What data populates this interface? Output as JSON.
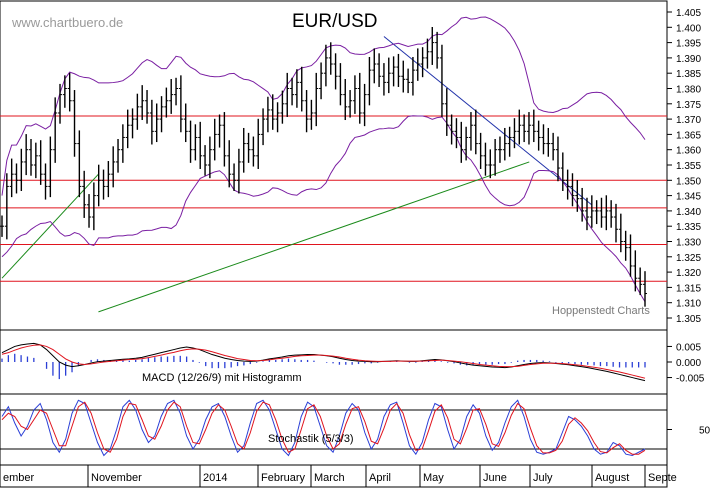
{
  "watermark": "www.chartbuero.de",
  "title": "EUR/USD",
  "credit": "Hoppenstedt Charts",
  "colors": {
    "price": "#000000",
    "bands": "#7a1fa2",
    "levels": "#e0141e",
    "trend_down": "#2233aa",
    "trend_up": "#1a8a1a",
    "macd": "#000000",
    "signal": "#e0141e",
    "histogram": "#2b3fd6",
    "stoch_k": "#2b3fd6",
    "stoch_d": "#e0141e",
    "grid": "#000000"
  },
  "x_axis": {
    "labels": [
      "ember",
      "November",
      "2014",
      "February",
      "March",
      "April",
      "May",
      "June",
      "July",
      "August",
      "Septe"
    ]
  },
  "chart_data": [
    {
      "type": "candlestick",
      "title": "EUR/USD",
      "ylim": [
        1.3,
        1.405
      ],
      "yticks": [
        "1.405",
        "1.400",
        "1.395",
        "1.390",
        "1.385",
        "1.380",
        "1.375",
        "1.370",
        "1.365",
        "1.360",
        "1.355",
        "1.350",
        "1.345",
        "1.340",
        "1.335",
        "1.330",
        "1.325",
        "1.320",
        "1.315",
        "1.310",
        "1.305"
      ],
      "horizontal_levels": [
        1.371,
        1.35,
        1.341,
        1.329,
        1.317
      ],
      "trendlines": [
        {
          "name": "downtrend",
          "from": [
            0.594,
            1.397
          ],
          "to": [
            0.917,
            1.342
          ]
        },
        {
          "name": "uptrend",
          "from": [
            0.15,
            1.307
          ],
          "to": [
            0.82,
            1.356
          ]
        },
        {
          "name": "uptrend-early",
          "from": [
            0.0,
            1.318
          ],
          "to": [
            0.15,
            1.352
          ]
        }
      ],
      "bollinger": true,
      "close": [
        1.335,
        1.348,
        1.352,
        1.35,
        1.356,
        1.36,
        1.355,
        1.358,
        1.352,
        1.348,
        1.36,
        1.372,
        1.378,
        1.38,
        1.376,
        1.362,
        1.348,
        1.342,
        1.338,
        1.345,
        1.35,
        1.348,
        1.352,
        1.356,
        1.36,
        1.364,
        1.368,
        1.37,
        1.374,
        1.376,
        1.372,
        1.366,
        1.37,
        1.374,
        1.376,
        1.378,
        1.38,
        1.37,
        1.366,
        1.36,
        1.364,
        1.358,
        1.355,
        1.36,
        1.365,
        1.368,
        1.358,
        1.352,
        1.35,
        1.356,
        1.362,
        1.36,
        1.358,
        1.365,
        1.37,
        1.373,
        1.37,
        1.372,
        1.375,
        1.38,
        1.378,
        1.382,
        1.376,
        1.37,
        1.372,
        1.38,
        1.385,
        1.39,
        1.388,
        1.384,
        1.378,
        1.374,
        1.376,
        1.38,
        1.372,
        1.378,
        1.386,
        1.388,
        1.384,
        1.382,
        1.385,
        1.387,
        1.384,
        1.383,
        1.382,
        1.386,
        1.388,
        1.39,
        1.392,
        1.395,
        1.39,
        1.375,
        1.368,
        1.366,
        1.364,
        1.36,
        1.364,
        1.368,
        1.362,
        1.358,
        1.355,
        1.355,
        1.36,
        1.36,
        1.362,
        1.364,
        1.366,
        1.368,
        1.366,
        1.368,
        1.366,
        1.364,
        1.362,
        1.362,
        1.36,
        1.354,
        1.35,
        1.348,
        1.345,
        1.344,
        1.34,
        1.338,
        1.34,
        1.34,
        1.338,
        1.34,
        1.338,
        1.334,
        1.33,
        1.328,
        1.322,
        1.318,
        1.316,
        1.313
      ],
      "series": [
        {
          "name": "EUR/USD",
          "values": "close"
        }
      ]
    },
    {
      "type": "line",
      "title": "MACD (12/26/9) mit Histogramm",
      "ylim": [
        -0.009,
        0.009
      ],
      "yticks": [
        "0.005",
        "0.000",
        "-0.005"
      ],
      "series": [
        {
          "name": "MACD",
          "values": [
            0.003,
            0.004,
            0.005,
            0.0055,
            0.0058,
            0.006,
            0.0055,
            0.004,
            0.002,
            0.0,
            -0.001,
            -0.0015,
            -0.0012,
            -0.0008,
            -0.0003,
            0.0001,
            0.0003,
            0.0005,
            0.0007,
            0.0009,
            0.001,
            0.0012,
            0.0015,
            0.002,
            0.0025,
            0.003,
            0.0035,
            0.004,
            0.0045,
            0.0048,
            0.0045,
            0.004,
            0.0032,
            0.0024,
            0.0018,
            0.0012,
            0.0008,
            0.0005,
            0.0003,
            0.0002,
            0.0003,
            0.0006,
            0.001,
            0.0013,
            0.0016,
            0.002,
            0.0022,
            0.0023,
            0.0024,
            0.0024,
            0.0022,
            0.002,
            0.0017,
            0.0012,
            0.0008,
            0.0005,
            0.0003,
            0.0002,
            0.0001,
            0.0001,
            0.0002,
            0.0003,
            0.0004,
            0.0003,
            0.0002,
            0.0002,
            0.0004,
            0.0006,
            0.0008,
            0.0007,
            0.0004,
            0.0001,
            -0.0003,
            -0.0007,
            -0.001,
            -0.0012,
            -0.0014,
            -0.0016,
            -0.0017,
            -0.0018,
            -0.0016,
            -0.0012,
            -0.0008,
            -0.0005,
            -0.0003,
            -0.0002,
            -0.0003,
            -0.0005,
            -0.0007,
            -0.0009,
            -0.0012,
            -0.0015,
            -0.0018,
            -0.0022,
            -0.0026,
            -0.003,
            -0.0035,
            -0.004,
            -0.0045,
            -0.005,
            -0.0055,
            -0.006
          ]
        },
        {
          "name": "Signal",
          "values": [
            0.0025,
            0.003,
            0.0038,
            0.0045,
            0.005,
            0.0054,
            0.0055,
            0.005,
            0.004,
            0.0025,
            0.001,
            0.0,
            -0.0006,
            -0.0008,
            -0.0006,
            -0.0003,
            0.0,
            0.0002,
            0.0004,
            0.0006,
            0.0008,
            0.0009,
            0.0011,
            0.0014,
            0.0018,
            0.0022,
            0.0027,
            0.0031,
            0.0036,
            0.004,
            0.0042,
            0.0041,
            0.0038,
            0.0033,
            0.0027,
            0.0021,
            0.0016,
            0.0011,
            0.0008,
            0.0005,
            0.0004,
            0.0005,
            0.0007,
            0.001,
            0.0012,
            0.0015,
            0.0018,
            0.002,
            0.0021,
            0.0022,
            0.0022,
            0.0021,
            0.0019,
            0.0016,
            0.0012,
            0.0009,
            0.0006,
            0.0004,
            0.0003,
            0.0002,
            0.0002,
            0.0002,
            0.0003,
            0.0003,
            0.0003,
            0.0003,
            0.0003,
            0.0004,
            0.0005,
            0.0006,
            0.0005,
            0.0003,
            0.0001,
            -0.0002,
            -0.0005,
            -0.0008,
            -0.001,
            -0.0012,
            -0.0014,
            -0.0015,
            -0.0015,
            -0.0014,
            -0.0011,
            -0.0008,
            -0.0006,
            -0.0004,
            -0.0004,
            -0.0004,
            -0.0005,
            -0.0007,
            -0.0009,
            -0.0011,
            -0.0014,
            -0.0017,
            -0.002,
            -0.0024,
            -0.0028,
            -0.0032,
            -0.0037,
            -0.0042,
            -0.0047,
            -0.0052
          ]
        }
      ]
    },
    {
      "type": "line",
      "title": "Stochastik (5/3/3)",
      "ylim": [
        0,
        100
      ],
      "yticks": [
        "50"
      ],
      "horizontal_levels": [
        80,
        20
      ],
      "series": [
        {
          "name": "%K",
          "values": [
            70,
            85,
            60,
            40,
            55,
            80,
            90,
            65,
            30,
            15,
            35,
            75,
            95,
            90,
            60,
            30,
            10,
            20,
            50,
            85,
            95,
            80,
            50,
            30,
            40,
            70,
            90,
            95,
            75,
            40,
            20,
            35,
            65,
            85,
            90,
            70,
            40,
            15,
            25,
            60,
            90,
            95,
            80,
            50,
            20,
            10,
            30,
            70,
            92,
            85,
            55,
            25,
            15,
            40,
            75,
            90,
            80,
            45,
            20,
            35,
            70,
            88,
            92,
            60,
            25,
            12,
            30,
            65,
            90,
            85,
            50,
            20,
            35,
            70,
            88,
            75,
            40,
            18,
            30,
            60,
            85,
            95,
            70,
            35,
            15,
            12,
            15,
            20,
            45,
            70,
            65,
            55,
            40,
            20,
            12,
            15,
            30,
            25,
            12,
            10,
            15,
            20
          ]
        },
        {
          "name": "%D",
          "values": [
            65,
            75,
            70,
            55,
            50,
            65,
            80,
            75,
            50,
            25,
            25,
            55,
            85,
            92,
            75,
            45,
            20,
            15,
            35,
            70,
            90,
            88,
            65,
            40,
            35,
            55,
            80,
            92,
            85,
            55,
            30,
            28,
            50,
            75,
            88,
            80,
            55,
            28,
            20,
            45,
            78,
            92,
            88,
            65,
            35,
            15,
            20,
            50,
            82,
            88,
            70,
            40,
            20,
            28,
            58,
            82,
            85,
            62,
            32,
            28,
            52,
            80,
            90,
            75,
            42,
            18,
            20,
            48,
            78,
            88,
            68,
            35,
            28,
            52,
            80,
            82,
            58,
            28,
            24,
            45,
            72,
            90,
            82,
            52,
            25,
            14,
            14,
            18,
            32,
            58,
            68,
            60,
            48,
            30,
            16,
            14,
            22,
            28,
            18,
            12,
            12,
            18
          ]
        }
      ]
    }
  ]
}
